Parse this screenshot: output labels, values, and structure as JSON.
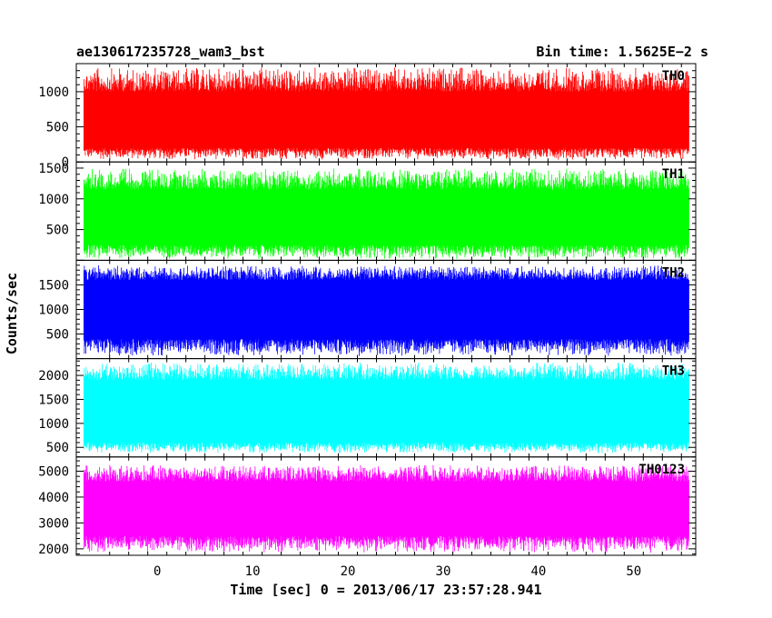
{
  "header": {
    "title": "ae130617235728_wam3_bst",
    "bin_time": "Bin time: 1.5625E−2 s"
  },
  "chart_data": {
    "type": "line",
    "xlabel": "Time [sec] 0 = 2013/06/17 23:57:28.941",
    "ylabel": "Counts/sec",
    "xlim": [
      -8.5,
      56.5
    ],
    "x_data_range": [
      -7.7,
      55.8
    ],
    "x_ticks": [
      0,
      10,
      20,
      30,
      40,
      50
    ],
    "panels": [
      {
        "name": "TH0",
        "color": "#ff0000",
        "ylim": [
          0,
          1400
        ],
        "ticks": [
          0,
          500,
          1000
        ],
        "band": [
          30,
          1350
        ],
        "core": [
          200,
          1000
        ]
      },
      {
        "name": "TH1",
        "color": "#00ff00",
        "ylim": [
          0,
          1600
        ],
        "ticks": [
          500,
          1000,
          1500
        ],
        "band": [
          20,
          1500
        ],
        "core": [
          250,
          1150
        ]
      },
      {
        "name": "TH2",
        "color": "#0000ff",
        "ylim": [
          0,
          2000
        ],
        "ticks": [
          500,
          1000,
          1500
        ],
        "band": [
          50,
          1900
        ],
        "core": [
          400,
          1600
        ]
      },
      {
        "name": "TH3",
        "color": "#00ffff",
        "ylim": [
          300,
          2350
        ],
        "ticks": [
          500,
          1000,
          1500,
          2000
        ],
        "band": [
          380,
          2270
        ],
        "core": [
          600,
          1900
        ]
      },
      {
        "name": "TH0123",
        "color": "#ff00ff",
        "ylim": [
          1750,
          5550
        ],
        "ticks": [
          2000,
          3000,
          4000,
          5000
        ],
        "band": [
          1850,
          5250
        ],
        "core": [
          2500,
          4600
        ]
      }
    ]
  }
}
